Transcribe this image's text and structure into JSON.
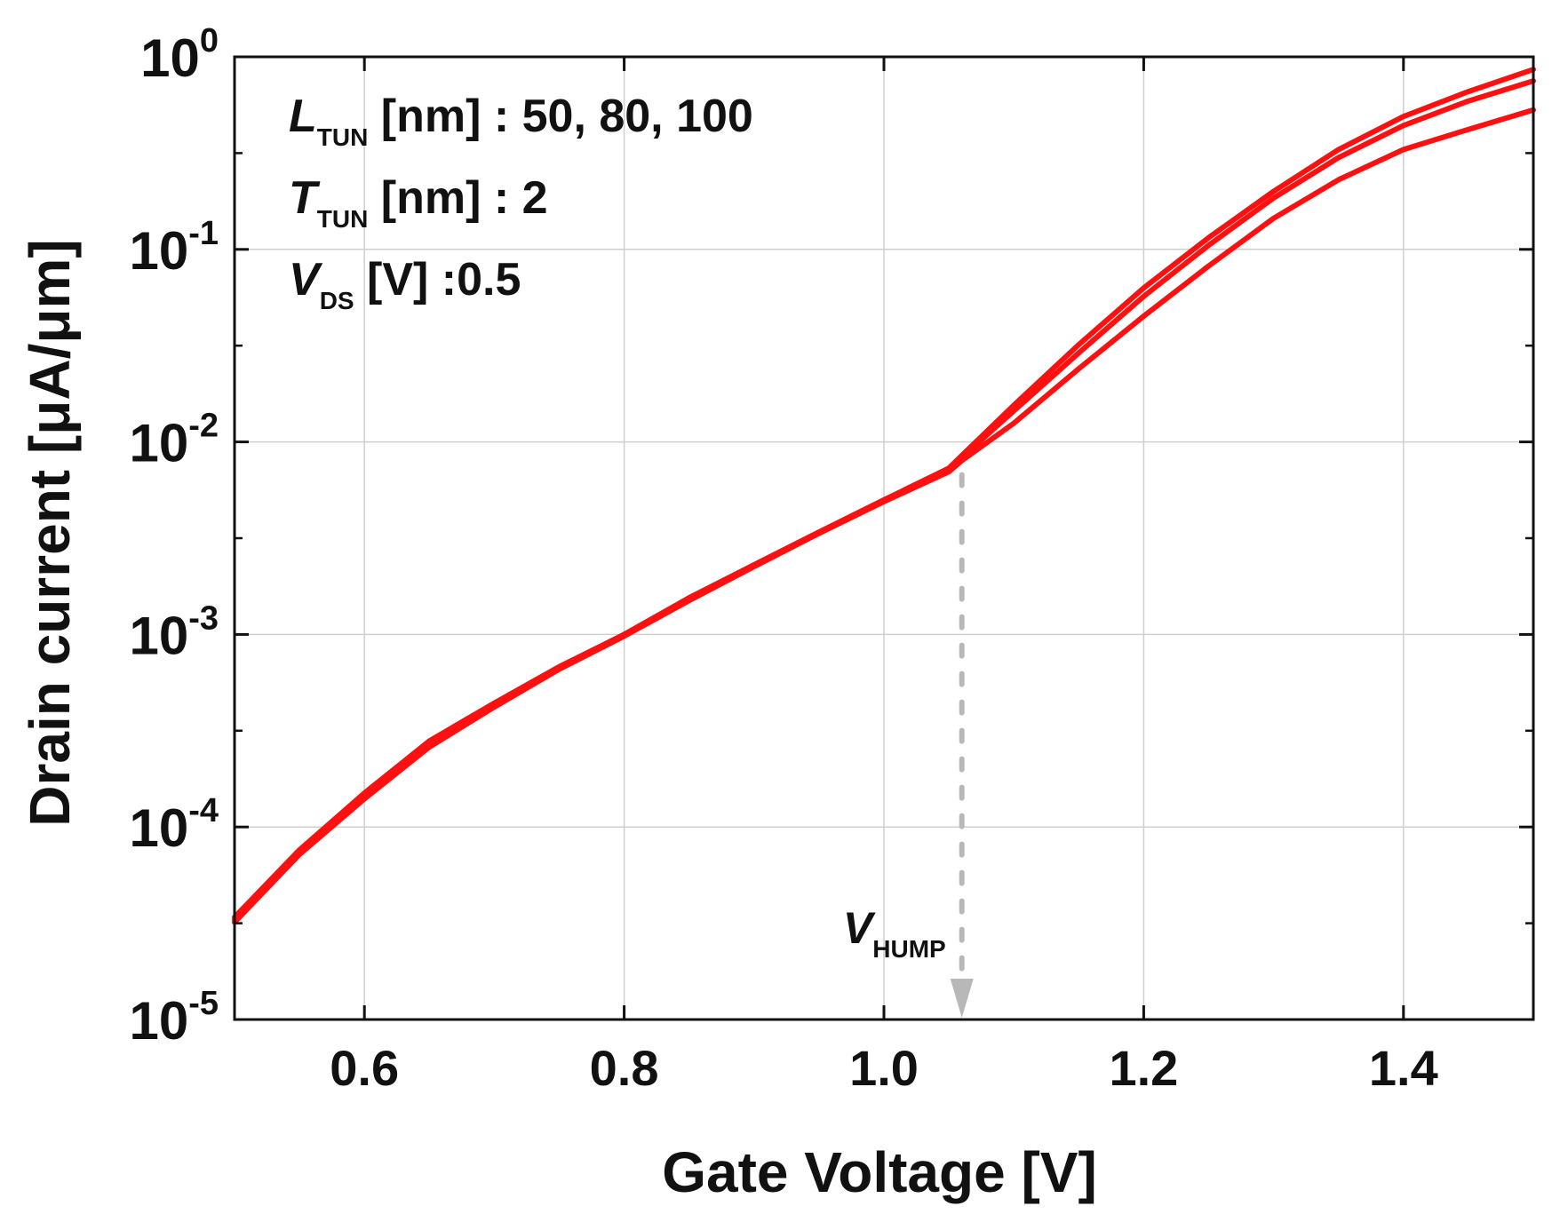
{
  "chart_data": {
    "type": "line",
    "xlabel": "Gate Voltage [V]",
    "ylabel": "Drain current [μA/μm]",
    "xlim": [
      0.5,
      1.5
    ],
    "ylim_log10": [
      -5,
      0
    ],
    "yscale": "log",
    "grid": true,
    "x_ticks": [
      "0.6",
      "0.8",
      "1.0",
      "1.2",
      "1.4"
    ],
    "y_ticks": [
      {
        "base": "10",
        "exp": "0",
        "value": 1
      },
      {
        "base": "10",
        "exp": "-1",
        "value": 0.1
      },
      {
        "base": "10",
        "exp": "-2",
        "value": 0.01
      },
      {
        "base": "10",
        "exp": "-3",
        "value": 0.001
      },
      {
        "base": "10",
        "exp": "-4",
        "value": 0.0001
      },
      {
        "base": "10",
        "exp": "-5",
        "value": 1e-05
      }
    ],
    "line_color": "#ff1010",
    "annotations": [
      {
        "symbol": "L",
        "sub": "TUN",
        "text": " [nm] : 50, 80, 100"
      },
      {
        "symbol": "T",
        "sub": "TUN",
        "text": " [nm] : 2"
      },
      {
        "symbol": "V",
        "sub": "DS",
        "text": " [V] :0.5"
      }
    ],
    "marker": {
      "symbol": "V",
      "sub": "HUMP",
      "x": 1.06,
      "color": "#b8b8b8"
    },
    "series": [
      {
        "name": "L_TUN = 50 nm",
        "x": [
          0.5,
          0.55,
          0.6,
          0.65,
          0.7,
          0.75,
          0.8,
          0.85,
          0.9,
          0.95,
          1.0,
          1.05,
          1.06,
          1.1,
          1.15,
          1.2,
          1.25,
          1.3,
          1.35,
          1.4,
          1.45,
          1.5
        ],
        "y": [
          3.4e-05,
          7.6e-05,
          0.00015,
          0.00028,
          0.00044,
          0.00068,
          0.001,
          0.00155,
          0.0023,
          0.0034,
          0.005,
          0.0073,
          0.0085,
          0.0155,
          0.032,
          0.063,
          0.115,
          0.2,
          0.33,
          0.49,
          0.66,
          0.86
        ]
      },
      {
        "name": "L_TUN = 80 nm",
        "x": [
          0.5,
          0.55,
          0.6,
          0.65,
          0.7,
          0.75,
          0.8,
          0.85,
          0.9,
          0.95,
          1.0,
          1.05,
          1.06,
          1.1,
          1.15,
          1.2,
          1.25,
          1.3,
          1.35,
          1.4,
          1.45,
          1.5
        ],
        "y": [
          3.3e-05,
          7.4e-05,
          0.000145,
          0.00027,
          0.00043,
          0.00067,
          0.001,
          0.00152,
          0.0023,
          0.0034,
          0.005,
          0.0072,
          0.0083,
          0.0145,
          0.029,
          0.057,
          0.105,
          0.185,
          0.3,
          0.44,
          0.59,
          0.75
        ]
      },
      {
        "name": "L_TUN = 100 nm",
        "x": [
          0.5,
          0.55,
          0.6,
          0.65,
          0.7,
          0.75,
          0.8,
          0.85,
          0.9,
          0.95,
          1.0,
          1.05,
          1.06,
          1.1,
          1.15,
          1.2,
          1.25,
          1.3,
          1.35,
          1.4,
          1.45,
          1.5
        ],
        "y": [
          3.2e-05,
          7.2e-05,
          0.00014,
          0.00026,
          0.00042,
          0.00066,
          0.00098,
          0.0015,
          0.00225,
          0.00335,
          0.0049,
          0.007,
          0.008,
          0.0125,
          0.024,
          0.045,
          0.082,
          0.145,
          0.23,
          0.33,
          0.42,
          0.53
        ]
      }
    ]
  }
}
